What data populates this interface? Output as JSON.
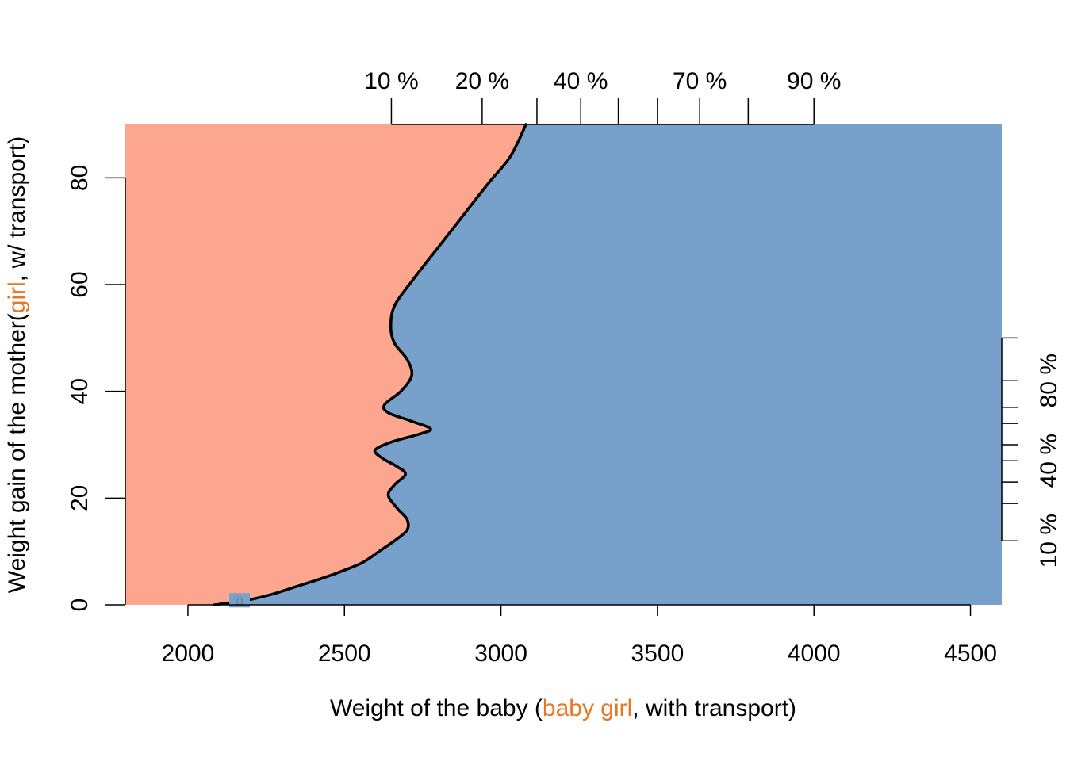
{
  "chart_data": {
    "type": "area",
    "title": "",
    "xlabel": {
      "prefix": "Weight of the baby (",
      "highlight": "baby girl",
      "suffix": ", with transport)"
    },
    "ylabel": {
      "prefix": "Weight gain of the mother(",
      "highlight": "girl",
      "suffix": ", w/ transport)"
    },
    "xlim": [
      1800,
      4600
    ],
    "ylim": [
      0,
      90
    ],
    "x_ticks": [
      2000,
      2500,
      3000,
      3500,
      4000,
      4500
    ],
    "y_ticks": [
      0,
      20,
      40,
      60,
      80
    ],
    "top_quantile_axis": {
      "positions": [
        2650,
        2940,
        3115,
        3255,
        3375,
        3500,
        3635,
        3790,
        4000
      ],
      "labels": [
        {
          "text": "10 %",
          "x": 2650
        },
        {
          "text": "20 %",
          "x": 2940
        },
        {
          "text": "40 %",
          "x": 3255
        },
        {
          "text": "70 %",
          "x": 3635
        },
        {
          "text": "90 %",
          "x": 4000
        }
      ]
    },
    "right_quantile_axis": {
      "positions": [
        12,
        19,
        23,
        27,
        30,
        34,
        37,
        42,
        50
      ],
      "labels": [
        {
          "text": "10 %",
          "y": 12
        },
        {
          "text": "40 %",
          "y": 27
        },
        {
          "text": "80 %",
          "y": 42
        }
      ]
    },
    "boundary": {
      "x": [
        2085,
        2150,
        2200,
        2270,
        2350,
        2430,
        2500,
        2560,
        2610,
        2660,
        2700,
        2700,
        2670,
        2640,
        2660,
        2695,
        2665,
        2620,
        2598,
        2650,
        2740,
        2775,
        2710,
        2640,
        2628,
        2680,
        2715,
        2700,
        2660,
        2648,
        2660,
        2720,
        2800,
        2880,
        2960,
        3030,
        3080
      ],
      "y": [
        0,
        0.5,
        1,
        2,
        3.5,
        5,
        6.5,
        8,
        10,
        12,
        14,
        16,
        18,
        20.5,
        22.5,
        24.5,
        26,
        27.5,
        29,
        30.5,
        32,
        33,
        34.5,
        36,
        37.5,
        40,
        43,
        46,
        49,
        52,
        56,
        61,
        67,
        73,
        79,
        84,
        90
      ]
    },
    "contour_label": "0",
    "regions": {
      "left": "#FCA68F",
      "right": "#77A1CB"
    },
    "highlight_color": "#E87722",
    "line_color": "#000000"
  }
}
